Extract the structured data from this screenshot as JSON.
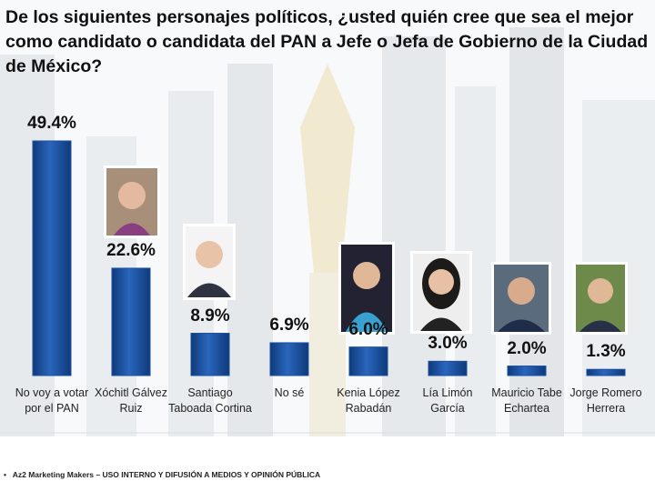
{
  "chart_data": {
    "type": "bar",
    "title": "De los siguientes personajes políticos, ¿usted quién cree que sea el mejor como candidato o candidata del PAN a Jefe o Jefa de Gobierno de la Ciudad de México?",
    "categories": [
      "No voy a votar por el PAN",
      "Xóchitl Gálvez Ruiz",
      "Santiago Taboada Cortina",
      "No sé",
      "Kenia López Rabadán",
      "Lía Limón García",
      "Mauricio Tabe Echartea",
      "Jorge Romero Herrera"
    ],
    "values": [
      49.4,
      22.6,
      8.9,
      6.9,
      6.0,
      3.0,
      2.0,
      1.3
    ],
    "value_labels": [
      "49.4%",
      "22.6%",
      "8.9%",
      "6.9%",
      "6.0%",
      "3.0%",
      "2.0%",
      "1.3%"
    ],
    "color": "#1b4f9e",
    "footer": "Az2 Marketing Makers – USO INTERNO Y DIFUSIÓN A MEDIOS Y OPINIÓN PÚBLICA"
  }
}
